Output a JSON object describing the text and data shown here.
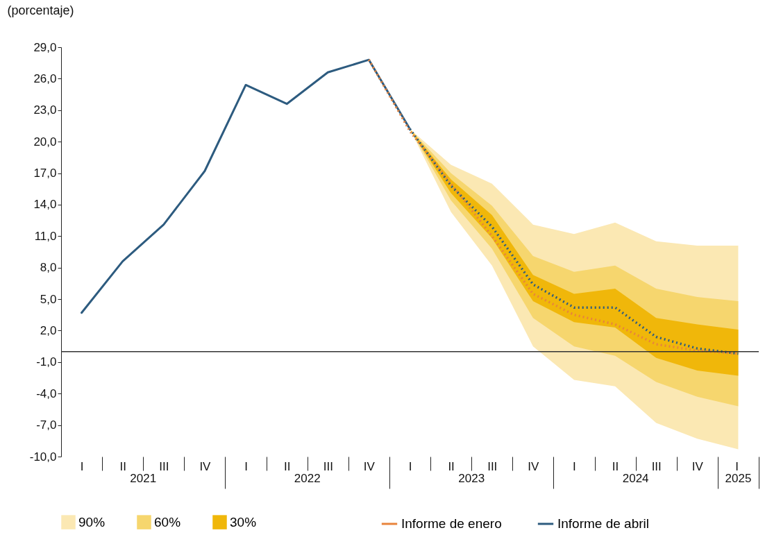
{
  "chart_data": {
    "type": "line",
    "ylabel": "(porcentaje)",
    "categories": [
      "I",
      "II",
      "III",
      "IV",
      "I",
      "II",
      "III",
      "IV",
      "I",
      "II",
      "III",
      "IV",
      "I",
      "II",
      "III",
      "IV",
      "I"
    ],
    "annotations": [
      "2021",
      "2022",
      "2023",
      "2024",
      "2025"
    ],
    "ylim": [
      -10,
      29
    ],
    "yticks": [
      {
        "value": 29,
        "label": "29,0"
      },
      {
        "value": 26,
        "label": "26,0"
      },
      {
        "value": 23,
        "label": "23,0"
      },
      {
        "value": 20,
        "label": "20,0"
      },
      {
        "value": 17,
        "label": "17,0"
      },
      {
        "value": 14,
        "label": "14,0"
      },
      {
        "value": 11,
        "label": "11,0"
      },
      {
        "value": 8,
        "label": "8,0"
      },
      {
        "value": 5,
        "label": "5,0"
      },
      {
        "value": 2,
        "label": "2,0"
      },
      {
        "value": -1,
        "label": "-1,0"
      },
      {
        "value": -4,
        "label": "-4,0"
      },
      {
        "value": -7,
        "label": "-7,0"
      },
      {
        "value": -10,
        "label": "-10,0"
      }
    ],
    "series": [
      {
        "name": "90%",
        "color": "#fbe8b3",
        "values": [
          null,
          null,
          null,
          null,
          null,
          null,
          null,
          null,
          null,
          null,
          null,
          null,
          null,
          null,
          null,
          null,
          null
        ],
        "lower": [
          null,
          null,
          null,
          null,
          null,
          null,
          null,
          null,
          21.2,
          13.3,
          8.2,
          0.5,
          -2.7,
          -3.3,
          -6.8,
          -8.3,
          -9.3
        ],
        "upper": [
          null,
          null,
          null,
          null,
          null,
          null,
          null,
          null,
          21.2,
          17.8,
          16.0,
          12.1,
          11.2,
          12.3,
          10.5,
          10.1,
          10.1
        ]
      },
      {
        "name": "60%",
        "color": "#f6d66e",
        "values": [
          null,
          null,
          null,
          null,
          null,
          null,
          null,
          null,
          null,
          null,
          null,
          null,
          null,
          null,
          null,
          null,
          null
        ],
        "lower": [
          null,
          null,
          null,
          null,
          null,
          null,
          null,
          null,
          21.2,
          14.4,
          9.8,
          3.2,
          0.5,
          -0.4,
          -2.9,
          -4.3,
          -5.2
        ],
        "upper": [
          null,
          null,
          null,
          null,
          null,
          null,
          null,
          null,
          21.2,
          17.0,
          13.9,
          9.1,
          7.6,
          8.2,
          6.0,
          5.2,
          4.8
        ]
      },
      {
        "name": "30%",
        "color": "#f0b70a",
        "values": [
          null,
          null,
          null,
          null,
          null,
          null,
          null,
          null,
          null,
          null,
          null,
          null,
          null,
          null,
          null,
          null,
          null
        ],
        "lower": [
          null,
          null,
          null,
          null,
          null,
          null,
          null,
          null,
          21.2,
          15.1,
          10.8,
          4.8,
          2.8,
          2.3,
          -0.6,
          -1.8,
          -2.3
        ],
        "upper": [
          null,
          null,
          null,
          null,
          null,
          null,
          null,
          null,
          21.2,
          16.4,
          13.0,
          7.3,
          5.5,
          6.0,
          3.2,
          2.6,
          2.1
        ]
      },
      {
        "name": "Informe de enero",
        "color": "#e8843c",
        "line_style": "dotted",
        "values": [
          null,
          null,
          null,
          null,
          null,
          null,
          null,
          27.8,
          21.0,
          16.0,
          11.0,
          5.5,
          3.5,
          2.6,
          0.7,
          0.1,
          -0.2
        ]
      },
      {
        "name": "Informe de abril",
        "color": "#2d5b7f",
        "line_style": "solid",
        "values": [
          3.7,
          8.6,
          12.1,
          17.2,
          25.4,
          23.6,
          26.6,
          27.8,
          21.2,
          null,
          null,
          null,
          null,
          null,
          null,
          null,
          null
        ]
      },
      {
        "color": "#2d5b7f",
        "line_style": "dotted",
        "values": [
          null,
          null,
          null,
          null,
          null,
          null,
          null,
          null,
          21.2,
          15.8,
          11.9,
          6.4,
          4.2,
          4.2,
          1.4,
          0.3,
          -0.2
        ]
      }
    ],
    "ref_lines": [
      {
        "axis": "y",
        "value": 0,
        "color": "#333333"
      }
    ],
    "grid": false,
    "legend": "bottom",
    "marker": "none"
  }
}
